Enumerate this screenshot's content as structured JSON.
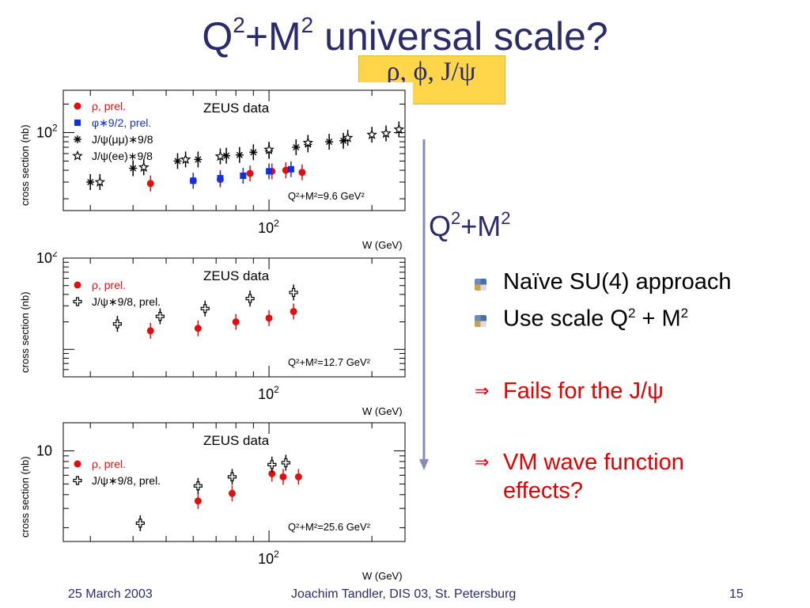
{
  "slide": {
    "title_prefix": "Q",
    "title_sup1": "2",
    "title_mid": "+M",
    "title_sup2": "2",
    "title_suffix": " universal scale?",
    "highlight": "ρ, ϕ, J/ψ",
    "arrow_label_q": "Q",
    "arrow_label_sup1": "2",
    "arrow_label_m": "+M",
    "arrow_label_sup2": "2"
  },
  "bullets": [
    {
      "text": "Naïve SU(4) approach"
    },
    {
      "text_pre": "Use scale Q",
      "sup1": "2",
      "text_mid": " + M",
      "sup2": "2"
    }
  ],
  "red_points": [
    {
      "symbol": "⇒",
      "text": "Fails for the J/ψ"
    },
    {
      "symbol": "⇒",
      "line1": "VM wave function",
      "line2": "effects?"
    }
  ],
  "footer": {
    "date": "25 March 2003",
    "author": "Joachim Tandler, DIS 03, St. Petersburg",
    "page": "15"
  },
  "colors": {
    "title": "#2b2b6b",
    "highlight_bg": "#ffd54a",
    "rho": "#e01010",
    "phi": "#1030e0",
    "jpsi": "#000000",
    "arrow": "#8a8ab8"
  },
  "chart_data": [
    {
      "type": "scatter",
      "annotation": "ZEUS data",
      "scale_label": "Q²+M²=9.6 GeV²",
      "xlabel": "W (GeV)",
      "ylabel": "cross section (nb)",
      "x_tick_label": "10²",
      "y_tick_label": "10²",
      "log_x": true,
      "log_y": true,
      "xlim": [
        25,
        250
      ],
      "ylim": [
        15,
        280
      ],
      "series": [
        {
          "name": "ρ, prel.",
          "marker": "dot",
          "color": "#e01010",
          "points": [
            [
              45,
              29
            ],
            [
              60,
              31
            ],
            [
              72,
              32
            ],
            [
              88,
              37
            ],
            [
              102,
              39
            ],
            [
              112,
              40
            ],
            [
              125,
              38
            ]
          ]
        },
        {
          "name": "φ∗9/2, prel.",
          "marker": "square",
          "color": "#1030e0",
          "points": [
            [
              60,
              31
            ],
            [
              72,
              33
            ],
            [
              84,
              35
            ],
            [
              100,
              39
            ],
            [
              116,
              41
            ]
          ]
        },
        {
          "name": "J/ψ(μμ)∗9/8",
          "marker": "asterisk",
          "color": "#000000",
          "points": [
            [
              30,
              30
            ],
            [
              40,
              42
            ],
            [
              54,
              50
            ],
            [
              62,
              52
            ],
            [
              75,
              57
            ],
            [
              82,
              58
            ],
            [
              90,
              62
            ],
            [
              100,
              64
            ],
            [
              120,
              70
            ],
            [
              130,
              75
            ],
            [
              150,
              80
            ],
            [
              165,
              82
            ]
          ]
        },
        {
          "name": "J/ψ(ee)∗9/8",
          "marker": "star",
          "color": "#000000",
          "points": [
            [
              32,
              30
            ],
            [
              43,
              43
            ],
            [
              57,
              52
            ],
            [
              72,
              56
            ],
            [
              100,
              66
            ],
            [
              130,
              78
            ],
            [
              170,
              88
            ],
            [
              200,
              95
            ],
            [
              220,
              98
            ],
            [
              240,
              108
            ]
          ]
        }
      ]
    },
    {
      "type": "scatter",
      "annotation": "ZEUS data",
      "scale_label": "Q²+M²=12.7 GeV²",
      "xlabel": "W (GeV)",
      "ylabel": "cross section (nb)",
      "x_tick_label": "10²",
      "y_tick_label": "10²",
      "log_x": true,
      "log_y": true,
      "xlim": [
        25,
        250
      ],
      "ylim": [
        5,
        100
      ],
      "series": [
        {
          "name": "ρ, prel.",
          "marker": "dot",
          "color": "#e01010",
          "points": [
            [
              45,
              16
            ],
            [
              62,
              17
            ],
            [
              80,
              20
            ],
            [
              100,
              22
            ],
            [
              118,
              26
            ]
          ]
        },
        {
          "name": "J/ψ∗9/8, prel.",
          "marker": "cross",
          "color": "#000000",
          "points": [
            [
              36,
              19
            ],
            [
              48,
              23
            ],
            [
              65,
              28
            ],
            [
              88,
              36
            ],
            [
              118,
              42
            ]
          ]
        }
      ]
    },
    {
      "type": "scatter",
      "annotation": "ZEUS data",
      "scale_label": "Q²+M²=25.6 GeV²",
      "xlabel": "W (GeV)",
      "ylabel": "cross section (nb)",
      "x_tick_label": "10²",
      "y_tick_label": "10",
      "log_x": true,
      "log_y": true,
      "xlim": [
        25,
        250
      ],
      "ylim": [
        1.5,
        18
      ],
      "series": [
        {
          "name": "ρ, prel.",
          "marker": "dot",
          "color": "#e01010",
          "points": [
            [
              62,
              3.5
            ],
            [
              78,
              4.1
            ],
            [
              102,
              6.2
            ],
            [
              110,
              5.8
            ],
            [
              122,
              5.8
            ]
          ]
        },
        {
          "name": "J/ψ∗9/8, prel.",
          "marker": "cross",
          "color": "#000000",
          "points": [
            [
              42,
              2.2
            ],
            [
              62,
              4.8
            ],
            [
              78,
              5.8
            ],
            [
              102,
              7.5
            ],
            [
              112,
              7.8
            ]
          ]
        }
      ]
    }
  ]
}
